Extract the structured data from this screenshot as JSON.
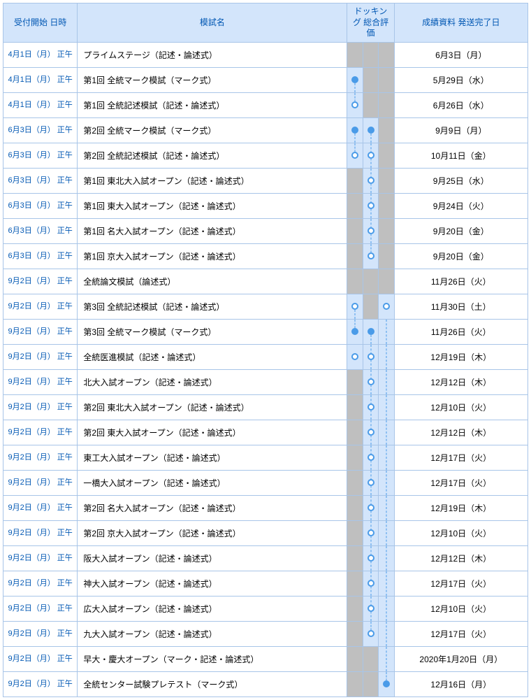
{
  "colors": {
    "border": "#a8c5e8",
    "header_bg": "#d3e5fb",
    "header_text": "#0057b3",
    "date_text": "#0057b3",
    "blank": "#bfbfbf",
    "dock_bg": "#d3e5fb",
    "dot": "#4a9be8"
  },
  "headers": {
    "date": "受付開始\n日時",
    "name": "模試名",
    "dock": "ドッキング\n総合評価",
    "ship": "成績資料\n発送完了日"
  },
  "rows": [
    {
      "date": "4月1日（月）\n正午",
      "name": "プライムステージ（記述・論述式）",
      "ship": "6月3日（月）",
      "d": [
        "b",
        "b",
        "b"
      ]
    },
    {
      "date": "4月1日（月）\n正午",
      "name": "第1回 全統マーク模試（マーク式）",
      "ship": "5月29日（水）",
      "d": [
        "f-bot",
        "b",
        "b"
      ]
    },
    {
      "date": "4月1日（月）\n正午",
      "name": "第1回 全統記述模試（記述・論述式）",
      "ship": "6月26日（水）",
      "d": [
        "h-top",
        "b",
        "b"
      ]
    },
    {
      "date": "6月3日（月）\n正午",
      "name": "第2回 全統マーク模試（マーク式）",
      "ship": "9月9日（月）",
      "d": [
        "f-bot",
        "f-bot",
        "b"
      ]
    },
    {
      "date": "6月3日（月）\n正午",
      "name": "第2回 全統記述模試（記述・論述式）",
      "ship": "10月11日（金）",
      "d": [
        "h-top",
        "h-line",
        "b"
      ]
    },
    {
      "date": "6月3日（月）\n正午",
      "name": "第1回 東北大入試オープン（記述・論述式）",
      "ship": "9月25日（水）",
      "d": [
        "b",
        "h-line",
        "b"
      ]
    },
    {
      "date": "6月3日（月）\n正午",
      "name": "第1回 東大入試オープン（記述・論述式）",
      "ship": "9月24日（火）",
      "d": [
        "b",
        "h-line",
        "b"
      ]
    },
    {
      "date": "6月3日（月）\n正午",
      "name": "第1回 名大入試オープン（記述・論述式）",
      "ship": "9月20日（金）",
      "d": [
        "b",
        "h-line",
        "b"
      ]
    },
    {
      "date": "6月3日（月）\n正午",
      "name": "第1回 京大入試オープン（記述・論述式）",
      "ship": "9月20日（金）",
      "d": [
        "b",
        "h-top",
        "b"
      ]
    },
    {
      "date": "9月2日（月）\n正午",
      "name": "全統論文模試（論述式）",
      "ship": "11月26日（火）",
      "d": [
        "b",
        "b",
        "b"
      ]
    },
    {
      "date": "9月2日（月）\n正午",
      "name": "第3回 全統記述模試（記述・論述式）",
      "ship": "11月30日（土）",
      "d": [
        "h-bot",
        "b",
        "h-lb"
      ]
    },
    {
      "date": "9月2日（月）\n正午",
      "name": "第3回 全統マーク模試（マーク式）",
      "ship": "11月26日（火）",
      "d": [
        "f-top",
        "f-bot",
        "lb-line"
      ]
    },
    {
      "date": "9月2日（月）\n正午",
      "name": "全統医進模試（記述・論述式）",
      "ship": "12月19日（木）",
      "d": [
        "h-lb",
        "h-line",
        "lb-line"
      ]
    },
    {
      "date": "9月2日（月）\n正午",
      "name": "北大入試オープン（記述・論述式）",
      "ship": "12月12日（木）",
      "d": [
        "b",
        "h-line",
        "lb-line"
      ]
    },
    {
      "date": "9月2日（月）\n正午",
      "name": "第2回 東北大入試オープン（記述・論述式）",
      "ship": "12月10日（火）",
      "d": [
        "b",
        "h-line",
        "lb-line"
      ]
    },
    {
      "date": "9月2日（月）\n正午",
      "name": "第2回 東大入試オープン（記述・論述式）",
      "ship": "12月12日（木）",
      "d": [
        "b",
        "h-line",
        "lb-line"
      ]
    },
    {
      "date": "9月2日（月）\n正午",
      "name": "東工大入試オープン（記述・論述式）",
      "ship": "12月17日（火）",
      "d": [
        "b",
        "h-line",
        "lb-line"
      ]
    },
    {
      "date": "9月2日（月）\n正午",
      "name": "一橋大入試オープン（記述・論述式）",
      "ship": "12月17日（火）",
      "d": [
        "b",
        "h-line",
        "lb-line"
      ]
    },
    {
      "date": "9月2日（月）\n正午",
      "name": "第2回 名大入試オープン（記述・論述式）",
      "ship": "12月19日（木）",
      "d": [
        "b",
        "h-line",
        "lb-line"
      ]
    },
    {
      "date": "9月2日（月）\n正午",
      "name": "第2回 京大入試オープン（記述・論述式）",
      "ship": "12月10日（火）",
      "d": [
        "b",
        "h-line",
        "lb-line"
      ]
    },
    {
      "date": "9月2日（月）\n正午",
      "name": "阪大入試オープン（記述・論述式）",
      "ship": "12月12日（木）",
      "d": [
        "b",
        "h-line",
        "lb-line"
      ]
    },
    {
      "date": "9月2日（月）\n正午",
      "name": "神大入試オープン（記述・論述式）",
      "ship": "12月17日（火）",
      "d": [
        "b",
        "h-line",
        "lb-line"
      ]
    },
    {
      "date": "9月2日（月）\n正午",
      "name": "広大入試オープン（記述・論述式）",
      "ship": "12月10日（火）",
      "d": [
        "b",
        "h-line",
        "lb-line"
      ]
    },
    {
      "date": "9月2日（月）\n正午",
      "name": "九大入試オープン（記述・論述式）",
      "ship": "12月17日（火）",
      "d": [
        "b",
        "h-top",
        "lb-line"
      ]
    },
    {
      "date": "9月2日（月）\n正午",
      "name": "早大・慶大オープン（マーク・記述・論述式）",
      "ship": "2020年1月20日（月）",
      "d": [
        "b",
        "b",
        "lb-line"
      ]
    },
    {
      "date": "9月2日（月）\n正午",
      "name": "全統センター試験プレテスト（マーク式）",
      "ship": "12月16日（月）",
      "d": [
        "b",
        "b",
        "f-lb-top"
      ]
    }
  ]
}
